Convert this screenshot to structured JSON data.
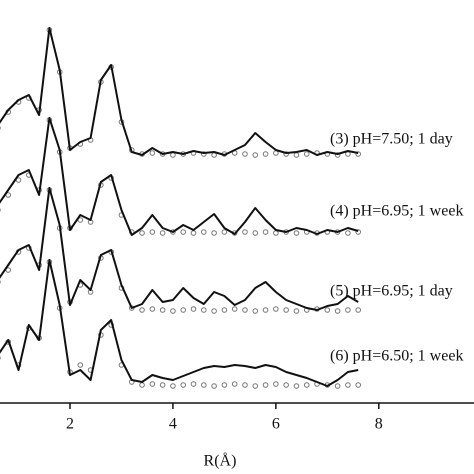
{
  "chart_data": {
    "type": "line",
    "xlabel": "R(Å)",
    "xlim": [
      0.64,
      9.85
    ],
    "ylim": [
      0,
      400
    ],
    "xticks": [
      2,
      4,
      6,
      8
    ],
    "x": [
      0.6,
      0.8,
      1.0,
      1.2,
      1.4,
      1.6,
      1.8,
      2.0,
      2.2,
      2.4,
      2.6,
      2.8,
      3.0,
      3.2,
      3.4,
      3.6,
      3.8,
      4.0,
      4.2,
      4.4,
      4.6,
      4.8,
      5.0,
      5.2,
      5.4,
      5.6,
      5.8,
      6.0,
      6.2,
      6.4,
      6.6,
      6.8,
      7.0,
      7.2,
      7.4,
      7.6
    ],
    "series": [
      {
        "style": "circles",
        "color": "#777777",
        "values": [
          272,
          288,
          298,
          302,
          290,
          370,
          328,
          252,
          256,
          260,
          318,
          333,
          278,
          250,
          246,
          247,
          246,
          245,
          246,
          247,
          246,
          245,
          246,
          247,
          246,
          245,
          246,
          247,
          246,
          245,
          246,
          247,
          246,
          245,
          246,
          246
        ]
      },
      {
        "style": "line",
        "color": "#111111",
        "values": [
          275,
          290,
          300,
          305,
          285,
          372,
          330,
          250,
          258,
          262,
          320,
          335,
          280,
          248,
          245,
          252,
          246,
          248,
          246,
          249,
          247,
          248,
          245,
          250,
          255,
          267,
          258,
          250,
          247,
          248,
          250,
          245,
          248,
          246,
          249,
          247
        ]
      },
      {
        "style": "circles",
        "color": "#777777",
        "values": [
          190,
          205,
          220,
          225,
          210,
          280,
          248,
          172,
          180,
          178,
          215,
          222,
          185,
          168,
          167,
          168,
          167,
          168,
          168,
          167,
          168,
          167,
          168,
          167,
          168,
          167,
          168,
          167,
          168,
          167,
          168,
          167,
          168,
          168,
          167,
          168
        ]
      },
      {
        "style": "line",
        "color": "#111111",
        "values": [
          195,
          210,
          225,
          230,
          205,
          282,
          250,
          170,
          185,
          180,
          218,
          225,
          190,
          165,
          172,
          185,
          172,
          168,
          175,
          170,
          178,
          186,
          172,
          166,
          178,
          192,
          180,
          170,
          168,
          172,
          170,
          166,
          170,
          168,
          172,
          169
        ]
      },
      {
        "style": "circles",
        "color": "#777777",
        "values": [
          118,
          130,
          148,
          152,
          135,
          210,
          172,
          98,
          115,
          108,
          142,
          148,
          112,
          92,
          90,
          91,
          90,
          89,
          90,
          91,
          90,
          89,
          90,
          91,
          90,
          89,
          90,
          91,
          90,
          89,
          90,
          91,
          90,
          89,
          90,
          90
        ]
      },
      {
        "style": "line",
        "color": "#111111",
        "values": [
          120,
          135,
          150,
          155,
          130,
          212,
          175,
          95,
          120,
          110,
          145,
          150,
          115,
          92,
          96,
          110,
          98,
          100,
          112,
          102,
          96,
          108,
          104,
          95,
          100,
          112,
          118,
          108,
          100,
          96,
          92,
          90,
          94,
          96,
          104,
          98
        ]
      },
      {
        "style": "circles",
        "color": "#777777",
        "values": [
          42,
          58,
          35,
          72,
          62,
          138,
          92,
          28,
          35,
          30,
          65,
          75,
          35,
          18,
          15,
          16,
          15,
          14,
          15,
          16,
          15,
          14,
          15,
          16,
          15,
          14,
          15,
          16,
          15,
          14,
          15,
          16,
          15,
          14,
          15,
          15
        ]
      },
      {
        "style": "line",
        "color": "#111111",
        "values": [
          45,
          60,
          30,
          75,
          60,
          140,
          95,
          25,
          30,
          20,
          70,
          80,
          40,
          20,
          18,
          25,
          22,
          20,
          24,
          28,
          32,
          34,
          33,
          35,
          34,
          32,
          35,
          33,
          28,
          25,
          22,
          18,
          14,
          20,
          28,
          30
        ]
      }
    ],
    "annotations": [
      "(3)  pH=7.50; 1 day",
      "(4)  pH=6.95; 1 week",
      "(5)  pH=6.95; 1 day",
      "(6)  pH=6.50; 1 week"
    ]
  }
}
